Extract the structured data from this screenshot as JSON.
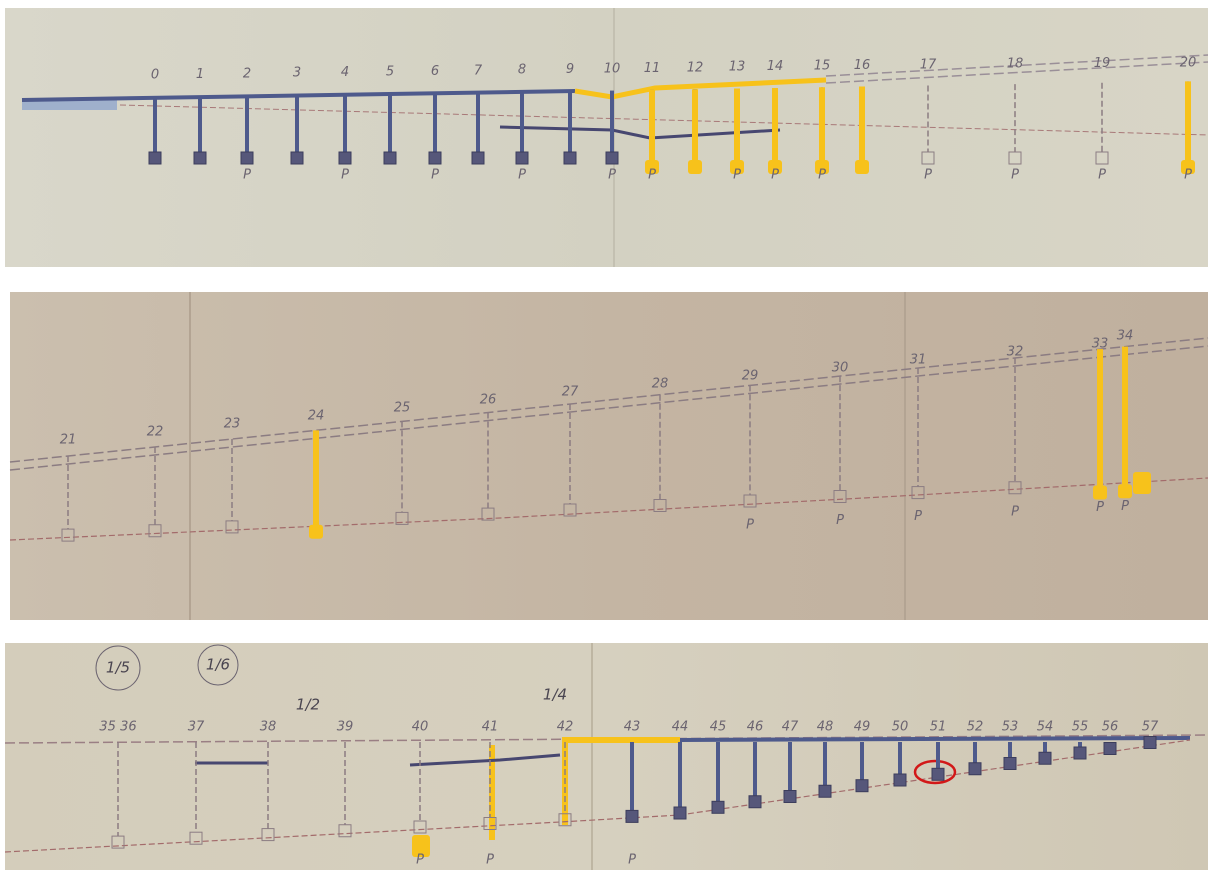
{
  "panels": [
    {
      "piers": [
        "0",
        "1",
        "2",
        "3",
        "4",
        "5",
        "6",
        "7",
        "8",
        "9",
        "10",
        "11",
        "12",
        "13",
        "14",
        "15",
        "16",
        "17",
        "18",
        "19",
        "20"
      ],
      "foot_label": "P"
    },
    {
      "piers": [
        "21",
        "22",
        "23",
        "24",
        "25",
        "26",
        "27",
        "28",
        "29",
        "30",
        "31",
        "32",
        "33",
        "34"
      ],
      "foot_label": "P"
    },
    {
      "piers": [
        "35 36",
        "37",
        "38",
        "39",
        "40",
        "41",
        "42",
        "43",
        "44",
        "45",
        "46",
        "47",
        "48",
        "49",
        "50",
        "51",
        "52",
        "53",
        "54",
        "55",
        "56",
        "57"
      ],
      "foot_label": "P",
      "notes": [
        "1/5",
        "1/6",
        "1/2",
        "1/4"
      ]
    }
  ]
}
